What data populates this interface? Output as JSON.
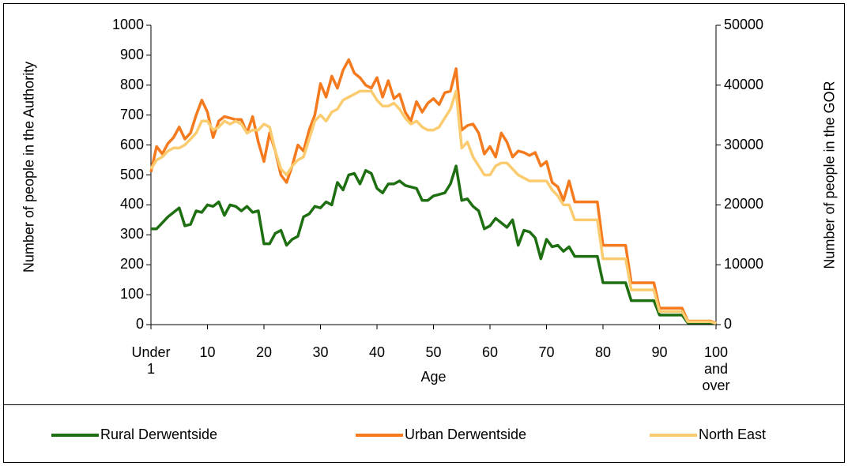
{
  "chart_data": {
    "type": "line",
    "x_label": "Age",
    "y_label": "Number of people in the Authority",
    "y2_label": "Number of people in the GOR",
    "categories": [
      "Under 1",
      null,
      null,
      null,
      null,
      null,
      null,
      null,
      null,
      null,
      "10",
      null,
      null,
      null,
      null,
      null,
      null,
      null,
      null,
      null,
      "20",
      null,
      null,
      null,
      null,
      null,
      null,
      null,
      null,
      null,
      "30",
      null,
      null,
      null,
      null,
      null,
      null,
      null,
      null,
      null,
      "40",
      null,
      null,
      null,
      null,
      null,
      null,
      null,
      null,
      null,
      "50",
      null,
      null,
      null,
      null,
      null,
      null,
      null,
      null,
      null,
      "60",
      null,
      null,
      null,
      null,
      null,
      null,
      null,
      null,
      null,
      "70",
      null,
      null,
      null,
      null,
      null,
      null,
      null,
      null,
      null,
      "80",
      null,
      null,
      null,
      null,
      null,
      null,
      null,
      null,
      null,
      "90",
      null,
      null,
      null,
      null,
      null,
      null,
      null,
      null,
      null,
      "100 and over"
    ],
    "ylim": [
      0,
      1000
    ],
    "yticks": [
      0,
      100,
      200,
      300,
      400,
      500,
      600,
      700,
      800,
      900,
      1000
    ],
    "y2lim": [
      0,
      50000
    ],
    "y2ticks": [
      0,
      10000,
      20000,
      30000,
      40000,
      50000
    ],
    "series": [
      {
        "name": "Rural Derwentside",
        "color": "#1e6e12",
        "values": [
          320,
          320,
          340,
          360,
          375,
          390,
          330,
          335,
          380,
          375,
          400,
          395,
          410,
          365,
          400,
          395,
          380,
          395,
          375,
          380,
          270,
          270,
          305,
          315,
          265,
          285,
          295,
          360,
          370,
          395,
          390,
          410,
          400,
          475,
          450,
          500,
          505,
          470,
          515,
          505,
          455,
          440,
          470,
          470,
          480,
          465,
          460,
          455,
          415,
          415,
          430,
          435,
          440,
          470,
          530,
          415,
          420,
          395,
          380,
          320,
          330,
          355,
          340,
          325,
          350,
          265,
          315,
          310,
          290,
          220,
          285,
          260,
          265,
          245,
          260,
          228,
          228,
          228,
          228,
          228,
          140,
          140,
          140,
          140,
          140,
          80,
          80,
          80,
          80,
          80,
          32,
          32,
          32,
          32,
          32,
          6,
          6,
          6,
          6,
          6,
          5
        ]
      },
      {
        "name": "Urban Derwentside",
        "color": "#f57a1e",
        "values": [
          510,
          595,
          570,
          605,
          625,
          660,
          620,
          640,
          700,
          750,
          710,
          625,
          680,
          695,
          690,
          685,
          685,
          640,
          695,
          610,
          545,
          640,
          580,
          500,
          475,
          530,
          600,
          580,
          650,
          700,
          805,
          760,
          830,
          790,
          850,
          885,
          840,
          825,
          800,
          790,
          825,
          760,
          815,
          755,
          770,
          710,
          680,
          745,
          710,
          740,
          755,
          735,
          775,
          780,
          855,
          650,
          665,
          670,
          640,
          570,
          595,
          560,
          640,
          610,
          560,
          580,
          575,
          565,
          575,
          530,
          545,
          475,
          460,
          415,
          480,
          410,
          410,
          410,
          410,
          410,
          265,
          265,
          265,
          265,
          265,
          140,
          140,
          140,
          140,
          140,
          55,
          55,
          55,
          55,
          55,
          12,
          12,
          12,
          12,
          12,
          5
        ]
      },
      {
        "name": "North East",
        "color": "#fbcb6f",
        "axis": "y2",
        "values": [
          26000,
          27500,
          28000,
          29000,
          29500,
          29500,
          30000,
          31000,
          32000,
          34000,
          34000,
          32500,
          33000,
          34000,
          33500,
          34000,
          33500,
          32000,
          32500,
          32500,
          33500,
          33000,
          29000,
          26000,
          25000,
          26500,
          27500,
          28000,
          31000,
          34000,
          35000,
          34000,
          35500,
          36000,
          37500,
          38000,
          38500,
          39000,
          39000,
          39000,
          37500,
          36500,
          36500,
          37000,
          36000,
          34500,
          33500,
          34000,
          33000,
          32500,
          32500,
          33000,
          34500,
          36000,
          39000,
          29500,
          30500,
          28000,
          26500,
          25000,
          25000,
          26500,
          27000,
          27000,
          26000,
          25000,
          24500,
          24000,
          24000,
          24000,
          24000,
          22500,
          21500,
          20000,
          20000,
          17500,
          17500,
          17500,
          17500,
          17500,
          11000,
          11000,
          11000,
          11000,
          11000,
          5800,
          5800,
          5800,
          5800,
          5800,
          2200,
          2200,
          2200,
          2200,
          2200,
          500,
          500,
          500,
          500,
          500,
          200
        ]
      }
    ]
  }
}
